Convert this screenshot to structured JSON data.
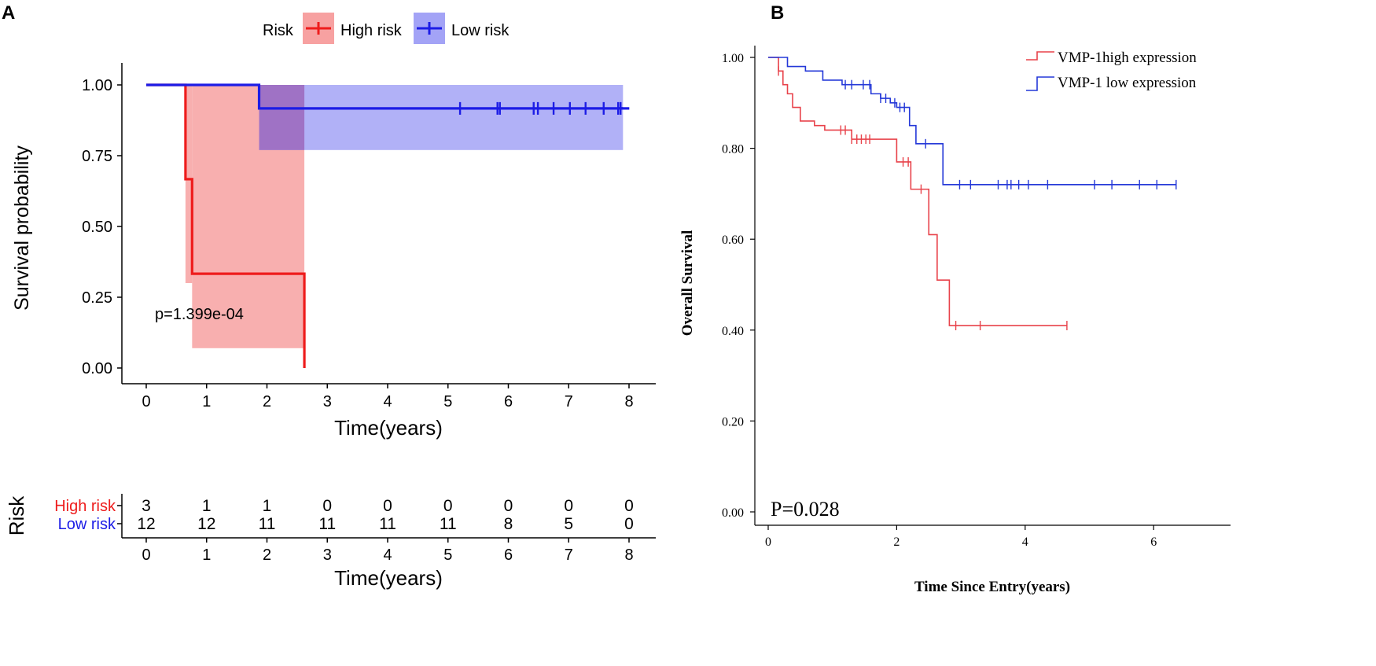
{
  "chart_data": [
    {
      "panel": "A",
      "type": "line",
      "subtype": "kaplan-meier",
      "title": "",
      "xlabel": "Time(years)",
      "ylabel": "Survival probability",
      "xlim": [
        0,
        8
      ],
      "ylim": [
        0,
        1
      ],
      "xticks": [
        "0",
        "1",
        "2",
        "3",
        "4",
        "5",
        "6",
        "7",
        "8"
      ],
      "yticks": [
        "0.00",
        "0.25",
        "0.50",
        "0.75",
        "1.00"
      ],
      "legend_title": "Risk",
      "annotation": "p=1.399e-04",
      "series": [
        {
          "name": "High risk",
          "color": "#ee1c1c",
          "fill": "#f7a1a1",
          "steps": [
            [
              0,
              1.0
            ],
            [
              0.65,
              0.667
            ],
            [
              0.76,
              0.333
            ],
            [
              2.62,
              0.0
            ]
          ],
          "end": 2.62,
          "ci_steps": [
            [
              0,
              1.0,
              1.0
            ],
            [
              0.65,
              0.3,
              1.0
            ],
            [
              0.76,
              0.07,
              1.0
            ],
            [
              2.62,
              0.07,
              1.0
            ]
          ],
          "censor": []
        },
        {
          "name": "Low risk",
          "color": "#1c1ce6",
          "fill": "#a3a3f6",
          "steps": [
            [
              0,
              1.0
            ],
            [
              1.87,
              0.917
            ]
          ],
          "end": 7.9,
          "ci_steps": [
            [
              0,
              1.0,
              1.0
            ],
            [
              1.87,
              0.77,
              1.0
            ]
          ],
          "censor": [
            5.2,
            5.82,
            5.86,
            6.42,
            6.49,
            6.75,
            7.02,
            7.28,
            7.58,
            7.82,
            7.86
          ]
        }
      ],
      "risk_table": {
        "title": "Risk",
        "xlabel": "Time(years)",
        "xticks": [
          "0",
          "1",
          "2",
          "3",
          "4",
          "5",
          "6",
          "7",
          "8"
        ],
        "rows": [
          {
            "label": "High risk",
            "color": "#ee1c1c",
            "values": [
              "3",
              "1",
              "1",
              "0",
              "0",
              "0",
              "0",
              "0",
              "0"
            ]
          },
          {
            "label": "Low risk",
            "color": "#1c1ce6",
            "values": [
              "12",
              "12",
              "11",
              "11",
              "11",
              "11",
              "8",
              "5",
              "0"
            ]
          }
        ]
      }
    },
    {
      "panel": "B",
      "type": "line",
      "subtype": "kaplan-meier",
      "title": "",
      "xlabel": "Time Since Entry(years)",
      "ylabel": "Overall Survival",
      "xlim": [
        0,
        7
      ],
      "ylim": [
        0,
        1.02
      ],
      "xticks": [
        "0",
        "2",
        "4",
        "6"
      ],
      "yticks": [
        "0.00",
        "0.20",
        "0.40",
        "0.60",
        "0.80",
        "1.00"
      ],
      "annotation": "P=0.028",
      "series": [
        {
          "name": "VMP-1high expression",
          "color": "#e8424a",
          "steps": [
            [
              0,
              1.0
            ],
            [
              0.16,
              0.97
            ],
            [
              0.23,
              0.94
            ],
            [
              0.3,
              0.92
            ],
            [
              0.38,
              0.89
            ],
            [
              0.5,
              0.86
            ],
            [
              0.72,
              0.85
            ],
            [
              0.88,
              0.84
            ],
            [
              1.3,
              0.82
            ],
            [
              1.8,
              0.82
            ],
            [
              2.0,
              0.77
            ],
            [
              2.22,
              0.71
            ],
            [
              2.5,
              0.61
            ],
            [
              2.63,
              0.51
            ],
            [
              2.82,
              0.41
            ]
          ],
          "end": 4.65,
          "censor": [
            0.16,
            1.13,
            1.2,
            1.3,
            1.38,
            1.45,
            1.52,
            1.58,
            2.1,
            2.18,
            2.38,
            2.92,
            3.3,
            4.65
          ]
        },
        {
          "name": "VMP-1 low expression",
          "color": "#2438d8",
          "steps": [
            [
              0,
              1.0
            ],
            [
              0.3,
              0.98
            ],
            [
              0.58,
              0.97
            ],
            [
              0.85,
              0.95
            ],
            [
              1.15,
              0.94
            ],
            [
              1.6,
              0.92
            ],
            [
              1.75,
              0.91
            ],
            [
              1.9,
              0.9
            ],
            [
              2.0,
              0.89
            ],
            [
              2.2,
              0.85
            ],
            [
              2.3,
              0.81
            ],
            [
              2.6,
              0.81
            ],
            [
              2.72,
              0.72
            ]
          ],
          "end": 6.35,
          "censor": [
            1.2,
            1.3,
            1.48,
            1.58,
            1.75,
            1.83,
            1.97,
            2.05,
            2.12,
            2.45,
            2.98,
            3.15,
            3.58,
            3.72,
            3.78,
            3.9,
            4.05,
            4.35,
            5.08,
            5.35,
            5.78,
            6.05,
            6.35
          ]
        }
      ]
    }
  ]
}
